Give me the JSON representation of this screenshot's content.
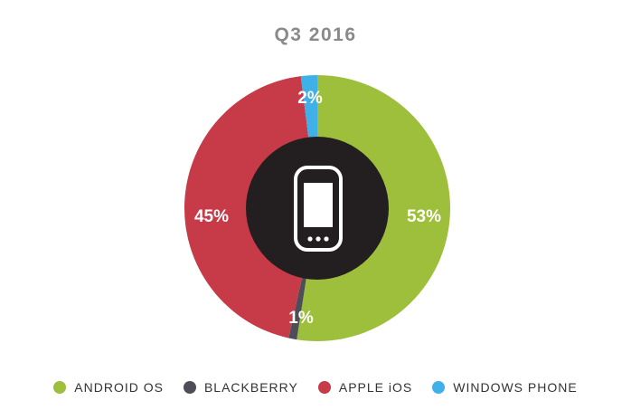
{
  "chart_data": {
    "type": "pie",
    "title": "Q3 2016",
    "categories": [
      "ANDROID OS",
      "BLACKBERRY",
      "APPLE iOS",
      "WINDOWS PHONE"
    ],
    "values": [
      53,
      1,
      45,
      2
    ],
    "labels": [
      "53%",
      "1%",
      "45%",
      "2%"
    ],
    "colors": [
      "#9dbf3c",
      "#4d4e58",
      "#c73a47",
      "#3fb0e8"
    ],
    "center_icon": "smartphone-icon",
    "center_color": "#231f20",
    "legend_position": "bottom"
  }
}
